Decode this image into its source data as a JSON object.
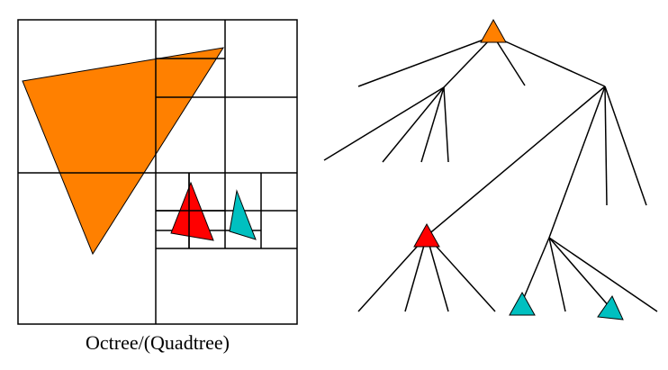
{
  "caption": "Octree/(Quadtree)",
  "colors": {
    "orange": "#FF8000",
    "red": "#FF0000",
    "cyan": "#00C0C0",
    "line": "#000000",
    "background": "#FFFFFF"
  }
}
